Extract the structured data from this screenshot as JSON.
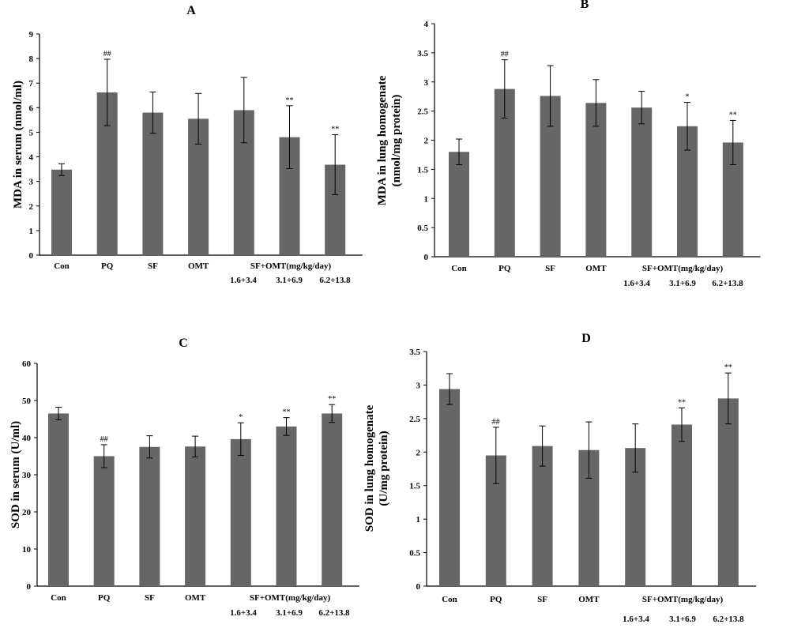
{
  "chart_data": [
    {
      "type": "bar",
      "panel_label": "A",
      "ylabel": "MDA in serum (nmol/ml)",
      "ylim": [
        0,
        9
      ],
      "yticks": [
        0,
        1,
        2,
        3,
        4,
        5,
        6,
        7,
        8,
        9
      ],
      "categories": [
        "Con",
        "PQ",
        "SF",
        "OMT",
        "",
        "",
        ""
      ],
      "group_label": "SF+OMT(mg/kg/day)",
      "dose_labels": [
        "1.6+3.4",
        "3.1+6.9",
        "6.2+13.8"
      ],
      "values": [
        3.48,
        6.62,
        5.8,
        5.55,
        5.9,
        4.8,
        3.68
      ],
      "errors": [
        0.24,
        1.35,
        0.84,
        1.03,
        1.33,
        1.28,
        1.22
      ],
      "significance": [
        "",
        "##",
        "",
        "",
        "",
        "**",
        "**"
      ]
    },
    {
      "type": "bar",
      "panel_label": "B",
      "ylabel": "MDA in lung homogenate (nmol/mg protein)",
      "ylabel_lines": [
        "MDA in lung homogenate",
        "(nmol/mg protein)"
      ],
      "ylim": [
        0,
        4
      ],
      "yticks": [
        "0",
        "0.5",
        "1",
        "1.5",
        "2",
        "2.5",
        "3",
        "3.5",
        "4"
      ],
      "categories": [
        "Con",
        "PQ",
        "SF",
        "OMT",
        "",
        "",
        ""
      ],
      "group_label": "SF+OMT(mg/kg/day)",
      "dose_labels": [
        "1.6+3.4",
        "3.1+6.9",
        "6.2+13.8"
      ],
      "values": [
        1.8,
        2.88,
        2.76,
        2.64,
        2.56,
        2.24,
        1.96
      ],
      "errors": [
        0.22,
        0.5,
        0.52,
        0.4,
        0.28,
        0.41,
        0.38
      ],
      "significance": [
        "",
        "##",
        "",
        "",
        "",
        "*",
        "**"
      ]
    },
    {
      "type": "bar",
      "panel_label": "C",
      "ylabel": "SOD in serum (U/ml)",
      "ylim": [
        0,
        60
      ],
      "yticks": [
        0,
        10,
        20,
        30,
        40,
        50,
        60
      ],
      "categories": [
        "Con",
        "PQ",
        "SF",
        "OMT",
        "",
        "",
        ""
      ],
      "group_label": "SF+OMT(mg/kg/day)",
      "dose_labels": [
        "1.6+3.4",
        "3.1+6.9",
        "6.2+13.8"
      ],
      "values": [
        46.5,
        35.0,
        37.5,
        37.6,
        39.6,
        43.0,
        46.5
      ],
      "errors": [
        1.7,
        3.1,
        3.0,
        2.8,
        4.4,
        2.4,
        2.4
      ],
      "significance": [
        "",
        "##",
        "",
        "",
        "*",
        "**",
        "**"
      ]
    },
    {
      "type": "bar",
      "panel_label": "D",
      "ylabel": "SOD in lung homogenate (U/mg protein)",
      "ylabel_lines": [
        "SOD in lung homogenate",
        "(U/mg protein)"
      ],
      "ylim": [
        0,
        3.5
      ],
      "yticks": [
        "0",
        "0.5",
        "1",
        "1.5",
        "2",
        "2.5",
        "3",
        "3.5"
      ],
      "categories": [
        "Con",
        "PQ",
        "SF",
        "OMT",
        "",
        "",
        ""
      ],
      "group_label": "SF+OMT(mg/kg/day)",
      "dose_labels": [
        "1.6+3.4",
        "3.1+6.9",
        "6.2+13.8"
      ],
      "values": [
        2.94,
        1.95,
        2.09,
        2.03,
        2.06,
        2.41,
        2.8
      ],
      "errors": [
        0.23,
        0.42,
        0.3,
        0.42,
        0.36,
        0.25,
        0.38
      ],
      "significance": [
        "",
        "##",
        "",
        "",
        "",
        "**",
        "**"
      ]
    }
  ],
  "colors": {
    "bar": "#666666",
    "axis": "#000000",
    "error": "#000000",
    "background": "#ffffff"
  }
}
